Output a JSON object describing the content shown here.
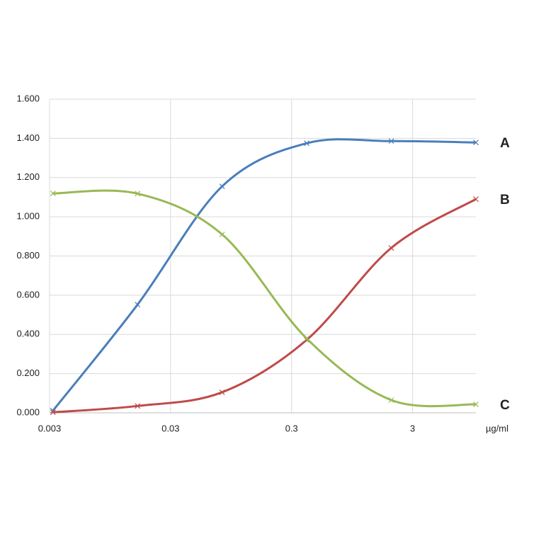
{
  "chart_data": {
    "type": "line",
    "x_label": "µg/ml",
    "x": [
      0.0032,
      0.016,
      0.08,
      0.4,
      2,
      10
    ],
    "series": [
      {
        "name": "A",
        "color": "#4a7ebb",
        "values": [
          0.011,
          0.552,
          1.155,
          1.375,
          1.386,
          1.379
        ]
      },
      {
        "name": "B",
        "color": "#be4b48",
        "values": [
          0.003,
          0.035,
          0.105,
          0.372,
          0.841,
          1.09
        ]
      },
      {
        "name": "C",
        "color": "#98b954",
        "values": [
          1.119,
          1.118,
          0.91,
          0.379,
          0.065,
          0.043
        ]
      }
    ],
    "xlog": true,
    "xlim": [
      0.003,
      10
    ],
    "xticks": [
      0.003,
      0.03,
      0.3,
      3
    ],
    "ylim": [
      0,
      1.6
    ],
    "yticks": [
      {
        "value": 0,
        "label": "0.000"
      },
      {
        "value": 0.2,
        "label": "0.200"
      },
      {
        "value": 0.4,
        "label": "0.400"
      },
      {
        "value": 0.6,
        "label": "0.600"
      },
      {
        "value": 0.8,
        "label": "0.800"
      },
      {
        "value": 1.0,
        "label": "1.000"
      },
      {
        "value": 1.2,
        "label": "1.200"
      },
      {
        "value": 1.4,
        "label": "1.400"
      },
      {
        "value": 1.6,
        "label": "1.600"
      }
    ],
    "grid": true
  }
}
